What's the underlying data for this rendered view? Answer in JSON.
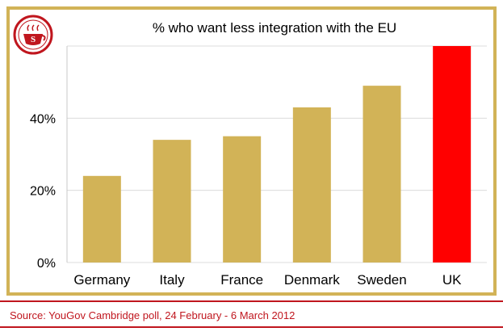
{
  "chart_data": {
    "type": "bar",
    "title": "% who want less integration with the EU",
    "categories": [
      "Germany",
      "Italy",
      "France",
      "Denmark",
      "Sweden",
      "UK"
    ],
    "values": [
      24,
      34,
      35,
      43,
      49,
      60
    ],
    "colors": [
      "#d2b357",
      "#d2b357",
      "#d2b357",
      "#d2b357",
      "#d2b357",
      "#ff0000"
    ],
    "ylim": [
      0,
      60
    ],
    "yticks": [
      0,
      20,
      40
    ],
    "ytick_labels": [
      "0%",
      "20%",
      "40%"
    ],
    "grid": true,
    "xlabel": "",
    "ylabel": ""
  },
  "logo": {
    "icon": "teacup-logo-icon",
    "letter": "S"
  },
  "source": "Source: YouGov Cambridge poll, 24 February - 6 March 2012",
  "colors": {
    "frame": "#d2b357",
    "accent": "#c0161e"
  }
}
